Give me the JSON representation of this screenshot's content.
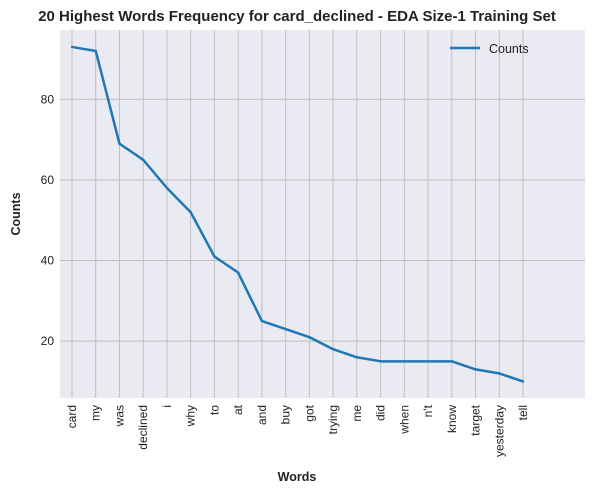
{
  "chart_data": {
    "type": "line",
    "title": "20 Highest Words Frequency for card_declined - EDA Size-1 Training Set",
    "xlabel": "Words",
    "ylabel": "Counts",
    "categories": [
      "card",
      "my",
      "was",
      "declined",
      "i",
      "why",
      "to",
      "at",
      "and",
      "buy",
      "got",
      "trying",
      "me",
      "did",
      "when",
      "n't",
      "know",
      "target",
      "yesterday",
      "tell"
    ],
    "series": [
      {
        "name": "Counts",
        "values": [
          93,
          92,
          69,
          65,
          58,
          52,
          41,
          37,
          25,
          23,
          21,
          18,
          16,
          15,
          15,
          15,
          15,
          13,
          12,
          10
        ]
      }
    ],
    "yticks": [
      20,
      40,
      60,
      80
    ],
    "ylim": [
      5.9,
      97.2
    ],
    "grid": true,
    "legend_position": "top-right",
    "colors": {
      "line": "#1f77b4",
      "plot_bg": "#eaeaf2",
      "grid": "#c0c0c0"
    }
  }
}
